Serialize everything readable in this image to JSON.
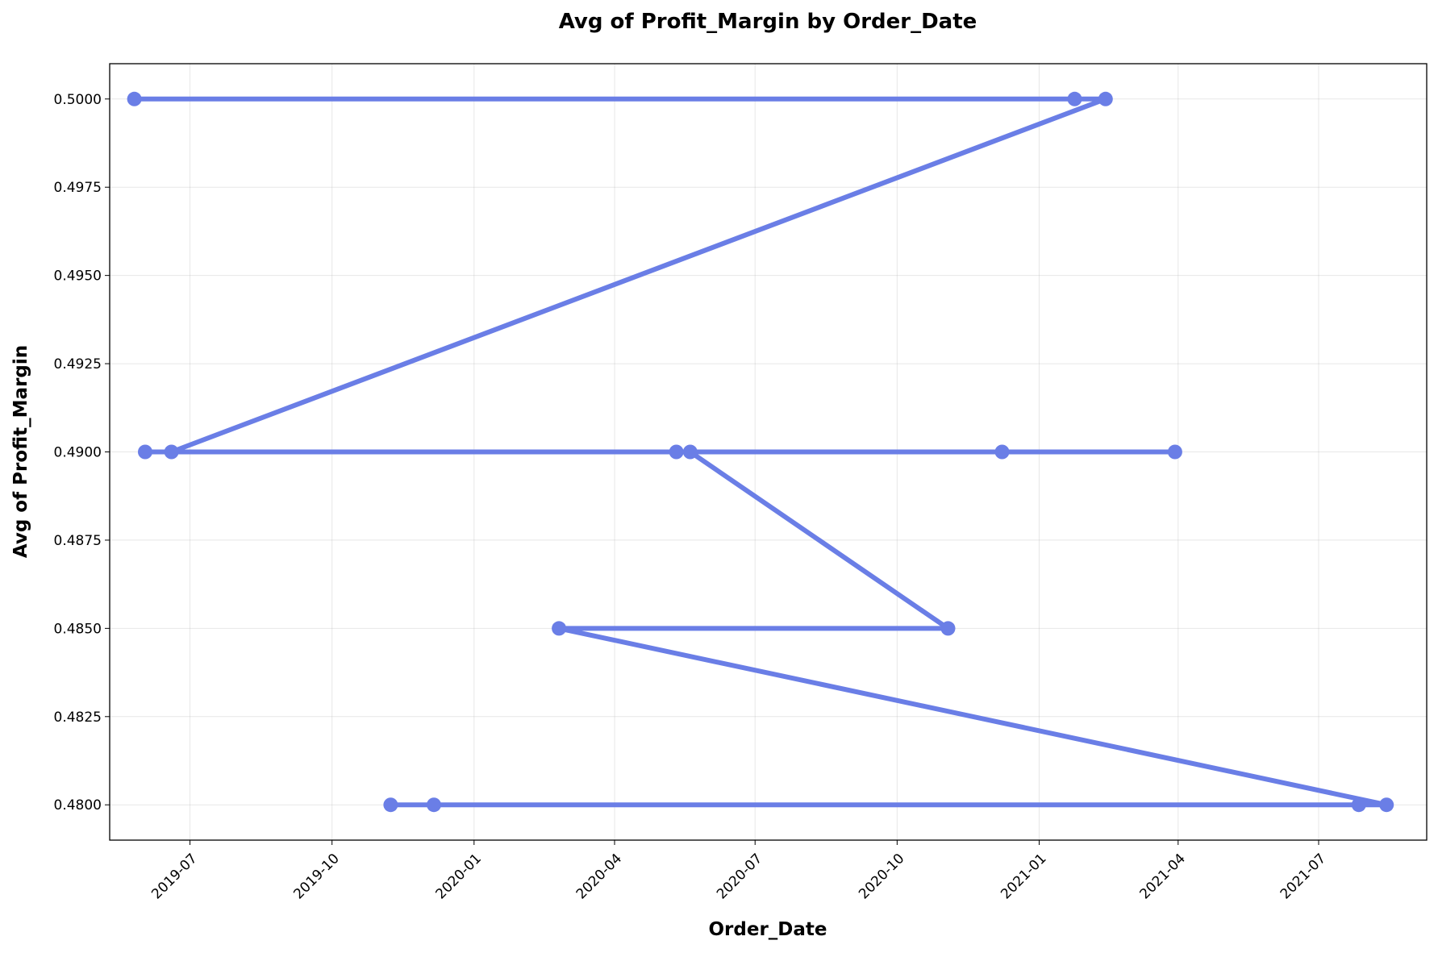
{
  "chart_data": {
    "type": "line",
    "title": "Avg of Profit_Margin by Order_Date",
    "xlabel": "Order_Date",
    "ylabel": "Avg of Profit_Margin",
    "x_axis_type": "date",
    "xlim": [
      "2019-05-10",
      "2021-09-09"
    ],
    "ylim": [
      0.479,
      0.501
    ],
    "grid": true,
    "color": "#6a7ee6",
    "x_ticks": [
      "2019-07-01",
      "2019-10-01",
      "2020-01-01",
      "2020-04-01",
      "2020-07-01",
      "2020-10-01",
      "2021-01-01",
      "2021-04-01",
      "2021-07-01"
    ],
    "x_tick_labels": [
      "2019-07",
      "2019-10",
      "2020-01",
      "2020-04",
      "2020-07",
      "2020-10",
      "2021-01",
      "2021-04",
      "2021-07"
    ],
    "y_ticks": [
      0.48,
      0.4825,
      0.485,
      0.4875,
      0.49,
      0.4925,
      0.495,
      0.4975,
      0.5
    ],
    "y_tick_labels": [
      "0.4800",
      "0.4825",
      "0.4850",
      "0.4875",
      "0.4900",
      "0.4925",
      "0.4950",
      "0.4975",
      "0.5000"
    ],
    "points": [
      {
        "x": "2019-05-26",
        "y": 0.5
      },
      {
        "x": "2021-01-24",
        "y": 0.5
      },
      {
        "x": "2021-02-13",
        "y": 0.5
      },
      {
        "x": "2019-06-19",
        "y": 0.49
      },
      {
        "x": "2019-06-02",
        "y": 0.49
      },
      {
        "x": "2020-05-11",
        "y": 0.49
      },
      {
        "x": "2020-12-08",
        "y": 0.49
      },
      {
        "x": "2021-03-30",
        "y": 0.49
      },
      {
        "x": "2020-05-20",
        "y": 0.49
      },
      {
        "x": "2020-11-03",
        "y": 0.485
      },
      {
        "x": "2020-02-25",
        "y": 0.485
      },
      {
        "x": "2021-08-14",
        "y": 0.48
      },
      {
        "x": "2021-07-27",
        "y": 0.48
      },
      {
        "x": "2019-12-06",
        "y": 0.48
      },
      {
        "x": "2019-11-08",
        "y": 0.48
      }
    ]
  }
}
